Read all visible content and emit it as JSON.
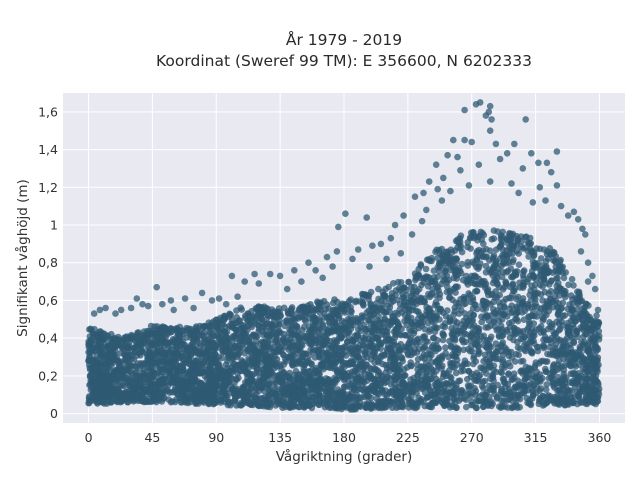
{
  "chart_data": {
    "type": "scatter",
    "title_lines": [
      "År 1979 - 2019",
      "Koordinat (Sweref 99 TM): E 356600, N 6202333"
    ],
    "xlabel": "Vågriktning (grader)",
    "ylabel": "Signifikant våghöjd (m)",
    "xlim": [
      -18,
      378
    ],
    "ylim": [
      -0.05,
      1.7
    ],
    "x_ticks": [
      0,
      45,
      90,
      135,
      180,
      225,
      270,
      315,
      360
    ],
    "x_tick_labels": [
      "0",
      "45",
      "90",
      "135",
      "180",
      "225",
      "270",
      "315",
      "360"
    ],
    "y_ticks": [
      0,
      0.2,
      0.4,
      0.6,
      0.8,
      1.0,
      1.2,
      1.4,
      1.6
    ],
    "y_tick_labels": [
      "0",
      "0,2",
      "0,4",
      "0,6",
      "0,8",
      "1",
      "1,2",
      "1,4",
      "1,6"
    ],
    "grid": true,
    "marker_color": "#2f5a73",
    "background_color": "#e9e9f2",
    "dense_band": {
      "x": [
        0,
        10,
        20,
        30,
        45,
        60,
        75,
        90,
        105,
        120,
        135,
        150,
        165,
        180,
        195,
        210,
        225,
        240,
        255,
        270,
        285,
        300,
        315,
        330,
        345,
        360
      ],
      "y_low": [
        0.05,
        0.05,
        0.06,
        0.06,
        0.06,
        0.06,
        0.05,
        0.05,
        0.04,
        0.04,
        0.03,
        0.03,
        0.03,
        0.02,
        0.02,
        0.03,
        0.03,
        0.03,
        0.03,
        0.03,
        0.03,
        0.03,
        0.04,
        0.04,
        0.05,
        0.05
      ],
      "y_high": [
        0.46,
        0.44,
        0.41,
        0.42,
        0.47,
        0.46,
        0.46,
        0.5,
        0.56,
        0.57,
        0.56,
        0.58,
        0.6,
        0.61,
        0.64,
        0.68,
        0.72,
        0.84,
        0.92,
        0.97,
        0.98,
        0.96,
        0.93,
        0.86,
        0.66,
        0.48
      ]
    },
    "outliers": [
      {
        "x": 273,
        "y": 1.64
      },
      {
        "x": 276,
        "y": 1.65
      },
      {
        "x": 283,
        "y": 1.63
      },
      {
        "x": 282,
        "y": 1.6
      },
      {
        "x": 284,
        "y": 1.56
      },
      {
        "x": 280,
        "y": 1.58
      },
      {
        "x": 283,
        "y": 1.5
      },
      {
        "x": 265,
        "y": 1.61
      },
      {
        "x": 308,
        "y": 1.56
      },
      {
        "x": 257,
        "y": 1.45
      },
      {
        "x": 265,
        "y": 1.45
      },
      {
        "x": 270,
        "y": 1.44
      },
      {
        "x": 287,
        "y": 1.43
      },
      {
        "x": 300,
        "y": 1.43
      },
      {
        "x": 295,
        "y": 1.38
      },
      {
        "x": 312,
        "y": 1.38
      },
      {
        "x": 330,
        "y": 1.39
      },
      {
        "x": 253,
        "y": 1.37
      },
      {
        "x": 260,
        "y": 1.36
      },
      {
        "x": 275,
        "y": 1.32
      },
      {
        "x": 290,
        "y": 1.35
      },
      {
        "x": 317,
        "y": 1.33
      },
      {
        "x": 323,
        "y": 1.33
      },
      {
        "x": 245,
        "y": 1.32
      },
      {
        "x": 262,
        "y": 1.29
      },
      {
        "x": 306,
        "y": 1.3
      },
      {
        "x": 326,
        "y": 1.28
      },
      {
        "x": 250,
        "y": 1.25
      },
      {
        "x": 283,
        "y": 1.23
      },
      {
        "x": 298,
        "y": 1.22
      },
      {
        "x": 318,
        "y": 1.2
      },
      {
        "x": 330,
        "y": 1.21
      },
      {
        "x": 240,
        "y": 1.23
      },
      {
        "x": 268,
        "y": 1.21
      },
      {
        "x": 246,
        "y": 1.19
      },
      {
        "x": 236,
        "y": 1.17
      },
      {
        "x": 255,
        "y": 1.18
      },
      {
        "x": 303,
        "y": 1.17
      },
      {
        "x": 313,
        "y": 1.12
      },
      {
        "x": 322,
        "y": 1.13
      },
      {
        "x": 249,
        "y": 1.13
      },
      {
        "x": 230,
        "y": 1.15
      },
      {
        "x": 333,
        "y": 1.1
      },
      {
        "x": 338,
        "y": 1.05
      },
      {
        "x": 342,
        "y": 1.07
      },
      {
        "x": 345,
        "y": 1.03
      },
      {
        "x": 222,
        "y": 1.05
      },
      {
        "x": 181,
        "y": 1.06
      },
      {
        "x": 196,
        "y": 1.04
      },
      {
        "x": 216,
        "y": 1.0
      },
      {
        "x": 235,
        "y": 1.02
      },
      {
        "x": 348,
        "y": 0.98
      },
      {
        "x": 350,
        "y": 0.95
      },
      {
        "x": 176,
        "y": 0.99
      },
      {
        "x": 213,
        "y": 0.93
      },
      {
        "x": 200,
        "y": 0.89
      },
      {
        "x": 190,
        "y": 0.87
      },
      {
        "x": 206,
        "y": 0.9
      },
      {
        "x": 347,
        "y": 0.86
      },
      {
        "x": 352,
        "y": 0.8
      },
      {
        "x": 175,
        "y": 0.86
      },
      {
        "x": 168,
        "y": 0.83
      },
      {
        "x": 186,
        "y": 0.82
      },
      {
        "x": 155,
        "y": 0.8
      },
      {
        "x": 160,
        "y": 0.76
      },
      {
        "x": 172,
        "y": 0.78
      },
      {
        "x": 145,
        "y": 0.76
      },
      {
        "x": 128,
        "y": 0.74
      },
      {
        "x": 135,
        "y": 0.73
      },
      {
        "x": 117,
        "y": 0.74
      },
      {
        "x": 101,
        "y": 0.73
      },
      {
        "x": 110,
        "y": 0.7
      },
      {
        "x": 120,
        "y": 0.69
      },
      {
        "x": 355,
        "y": 0.73
      },
      {
        "x": 352,
        "y": 0.7
      },
      {
        "x": 357,
        "y": 0.66
      },
      {
        "x": 48,
        "y": 0.67
      },
      {
        "x": 80,
        "y": 0.64
      },
      {
        "x": 92,
        "y": 0.61
      },
      {
        "x": 87,
        "y": 0.6
      },
      {
        "x": 68,
        "y": 0.61
      },
      {
        "x": 58,
        "y": 0.6
      },
      {
        "x": 52,
        "y": 0.58
      },
      {
        "x": 34,
        "y": 0.61
      },
      {
        "x": 38,
        "y": 0.58
      },
      {
        "x": 42,
        "y": 0.57
      },
      {
        "x": 30,
        "y": 0.56
      },
      {
        "x": 23,
        "y": 0.55
      },
      {
        "x": 19,
        "y": 0.53
      },
      {
        "x": 12,
        "y": 0.56
      },
      {
        "x": 8,
        "y": 0.55
      },
      {
        "x": 4,
        "y": 0.53
      },
      {
        "x": 60,
        "y": 0.55
      },
      {
        "x": 74,
        "y": 0.56
      },
      {
        "x": 97,
        "y": 0.58
      },
      {
        "x": 105,
        "y": 0.62
      },
      {
        "x": 140,
        "y": 0.66
      },
      {
        "x": 150,
        "y": 0.7
      },
      {
        "x": 165,
        "y": 0.72
      },
      {
        "x": 198,
        "y": 0.78
      },
      {
        "x": 210,
        "y": 0.82
      },
      {
        "x": 220,
        "y": 0.85
      },
      {
        "x": 228,
        "y": 0.95
      },
      {
        "x": 238,
        "y": 1.08
      },
      {
        "x": 359,
        "y": 0.55
      },
      {
        "x": 358,
        "y": 0.52
      }
    ]
  }
}
